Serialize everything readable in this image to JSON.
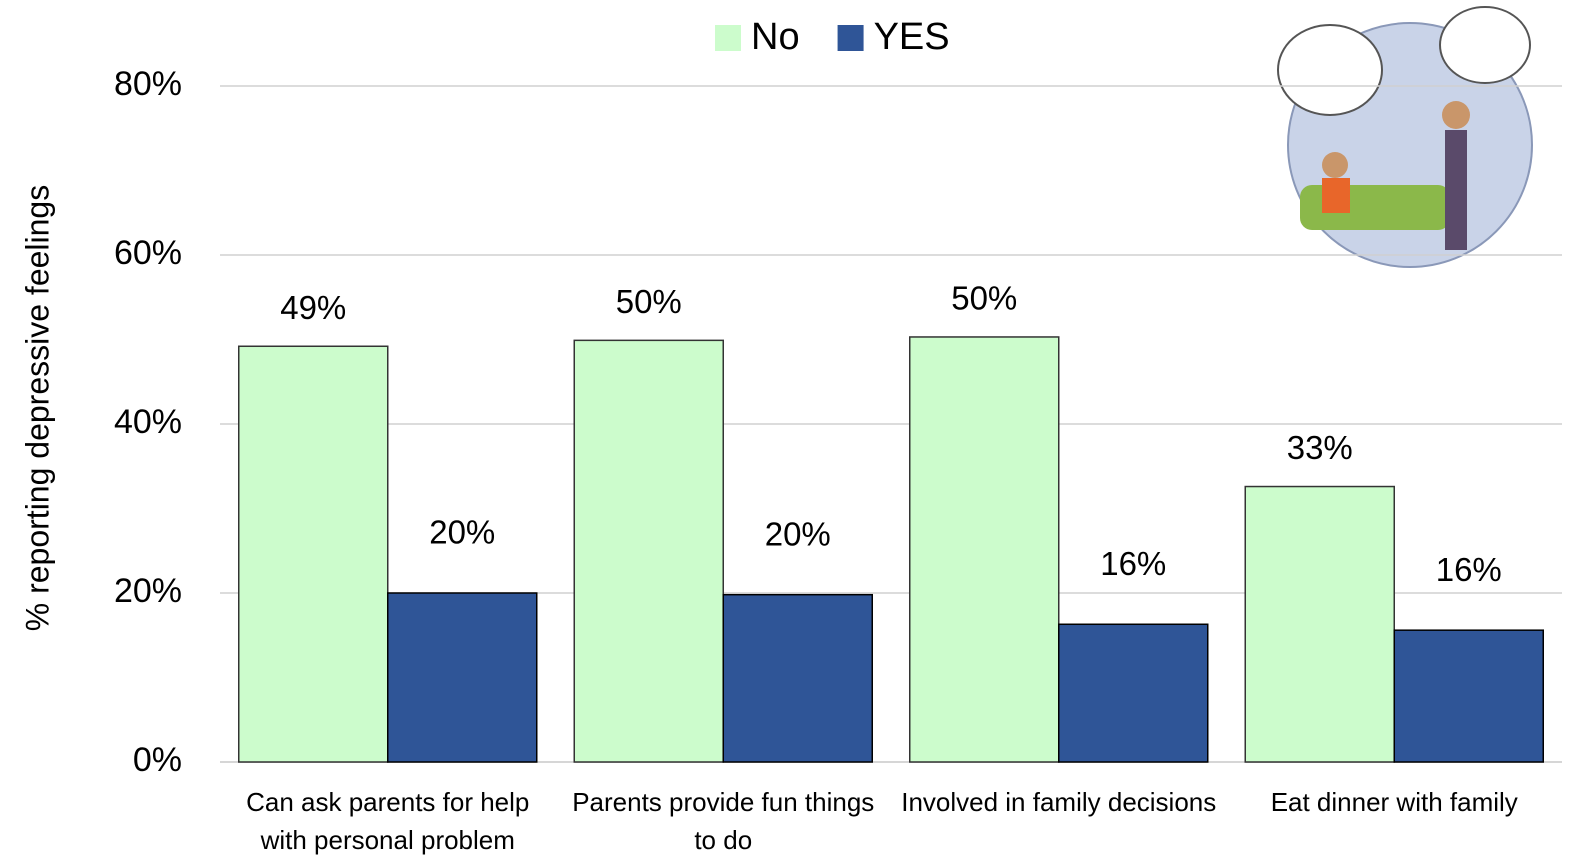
{
  "chart_data": {
    "type": "bar",
    "y_label": "% reporting depressive feelings",
    "categories": [
      "Can ask parents for help with personal problem",
      "Parents provide fun things to do",
      "Involved in family decisions",
      "Eat dinner with family"
    ],
    "series": [
      {
        "name": "No",
        "color": "#ccfccc",
        "values": [
          49.2,
          49.9,
          50.3,
          32.6
        ],
        "value_labels": [
          "49%",
          "50%",
          "50%",
          "33%"
        ]
      },
      {
        "name": "YES",
        "color": "#2f5597",
        "values": [
          20.0,
          19.8,
          16.3,
          15.6
        ],
        "value_labels": [
          "20%",
          "20%",
          "16%",
          "16%"
        ]
      }
    ],
    "ylim": [
      0,
      80
    ],
    "yticks": [
      {
        "value": 0,
        "label": "0%"
      },
      {
        "value": 20,
        "label": "20%"
      },
      {
        "value": 40,
        "label": "40%"
      },
      {
        "value": 60,
        "label": "60%"
      },
      {
        "value": 80,
        "label": "80%"
      }
    ],
    "grid": true,
    "legend": "top"
  }
}
